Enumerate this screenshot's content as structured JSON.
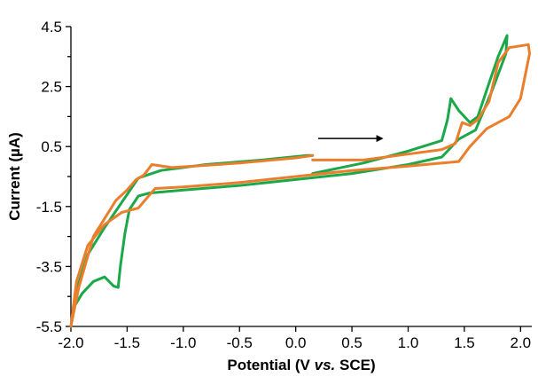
{
  "chart_data": {
    "type": "line",
    "title": "",
    "xlabel_parts": [
      "Potential (V ",
      "vs.",
      " SCE)"
    ],
    "ylabel": "Current  (µA)",
    "xlim": [
      -2.0,
      2.1
    ],
    "ylim": [
      -5.5,
      4.5
    ],
    "x_ticks": [
      "-2.0",
      "-1.5",
      "-1.0",
      "-0.5",
      "0.0",
      "0.5",
      "1.0",
      "1.5",
      "2.0"
    ],
    "y_ticks": [
      "4.5",
      "2.5",
      "0.5",
      "-1.5",
      "-3.5",
      "-5.5"
    ],
    "grid": false,
    "legend": "none",
    "annotation": {
      "type": "arrow",
      "direction": "right",
      "from": [
        0.2,
        0.77
      ],
      "to": [
        0.78,
        0.77
      ]
    },
    "series": [
      {
        "color": "#1aa84a",
        "points": [
          [
            0.15,
            -0.4
          ],
          [
            0.6,
            -0.05
          ],
          [
            1.0,
            0.35
          ],
          [
            1.3,
            0.7
          ],
          [
            1.35,
            1.4
          ],
          [
            1.38,
            2.1
          ],
          [
            1.45,
            1.7
          ],
          [
            1.55,
            1.3
          ],
          [
            1.62,
            1.5
          ],
          [
            1.7,
            2.4
          ],
          [
            1.8,
            3.5
          ],
          [
            1.88,
            4.2
          ],
          [
            1.87,
            3.6
          ],
          [
            1.75,
            2.4
          ],
          [
            1.6,
            1.05
          ],
          [
            1.45,
            0.75
          ],
          [
            1.3,
            0.15
          ],
          [
            1.0,
            -0.1
          ],
          [
            0.5,
            -0.4
          ],
          [
            0.0,
            -0.6
          ],
          [
            -0.5,
            -0.8
          ],
          [
            -1.0,
            -0.95
          ],
          [
            -1.3,
            -1.05
          ],
          [
            -1.4,
            -1.15
          ],
          [
            -1.48,
            -1.6
          ],
          [
            -1.52,
            -2.4
          ],
          [
            -1.56,
            -3.5
          ],
          [
            -1.58,
            -4.2
          ],
          [
            -1.62,
            -4.15
          ],
          [
            -1.7,
            -3.85
          ],
          [
            -1.8,
            -4.0
          ],
          [
            -1.9,
            -4.4
          ],
          [
            -1.98,
            -4.9
          ],
          [
            -1.95,
            -4.3
          ],
          [
            -1.85,
            -3.1
          ],
          [
            -1.7,
            -2.2
          ],
          [
            -1.5,
            -1.1
          ],
          [
            -1.4,
            -0.55
          ],
          [
            -1.2,
            -0.3
          ],
          [
            -0.8,
            -0.1
          ],
          [
            -0.3,
            0.05
          ],
          [
            0.1,
            0.2
          ],
          [
            0.15,
            0.2
          ]
        ]
      },
      {
        "color": "#ea7e2c",
        "points": [
          [
            0.15,
            0.05
          ],
          [
            0.6,
            0.05
          ],
          [
            1.0,
            0.25
          ],
          [
            1.3,
            0.4
          ],
          [
            1.42,
            0.6
          ],
          [
            1.48,
            1.3
          ],
          [
            1.55,
            1.2
          ],
          [
            1.62,
            1.4
          ],
          [
            1.72,
            2.0
          ],
          [
            1.8,
            3.3
          ],
          [
            1.9,
            3.8
          ],
          [
            2.07,
            3.9
          ],
          [
            2.08,
            3.6
          ],
          [
            2.0,
            2.1
          ],
          [
            1.9,
            1.5
          ],
          [
            1.7,
            1.1
          ],
          [
            1.55,
            0.5
          ],
          [
            1.45,
            0.0
          ],
          [
            1.0,
            -0.15
          ],
          [
            0.5,
            -0.3
          ],
          [
            0.0,
            -0.5
          ],
          [
            -0.5,
            -0.7
          ],
          [
            -1.0,
            -0.85
          ],
          [
            -1.25,
            -0.9
          ],
          [
            -1.32,
            -1.2
          ],
          [
            -1.4,
            -1.55
          ],
          [
            -1.55,
            -1.7
          ],
          [
            -1.7,
            -2.1
          ],
          [
            -1.85,
            -2.8
          ],
          [
            -1.95,
            -4.0
          ],
          [
            -2.0,
            -5.5
          ],
          [
            -1.93,
            -4.2
          ],
          [
            -1.8,
            -2.5
          ],
          [
            -1.6,
            -1.3
          ],
          [
            -1.5,
            -0.95
          ],
          [
            -1.42,
            -0.6
          ],
          [
            -1.35,
            -0.45
          ],
          [
            -1.28,
            -0.1
          ],
          [
            -1.1,
            -0.2
          ],
          [
            -0.5,
            -0.05
          ],
          [
            0.0,
            0.12
          ],
          [
            0.15,
            0.2
          ]
        ]
      }
    ]
  }
}
